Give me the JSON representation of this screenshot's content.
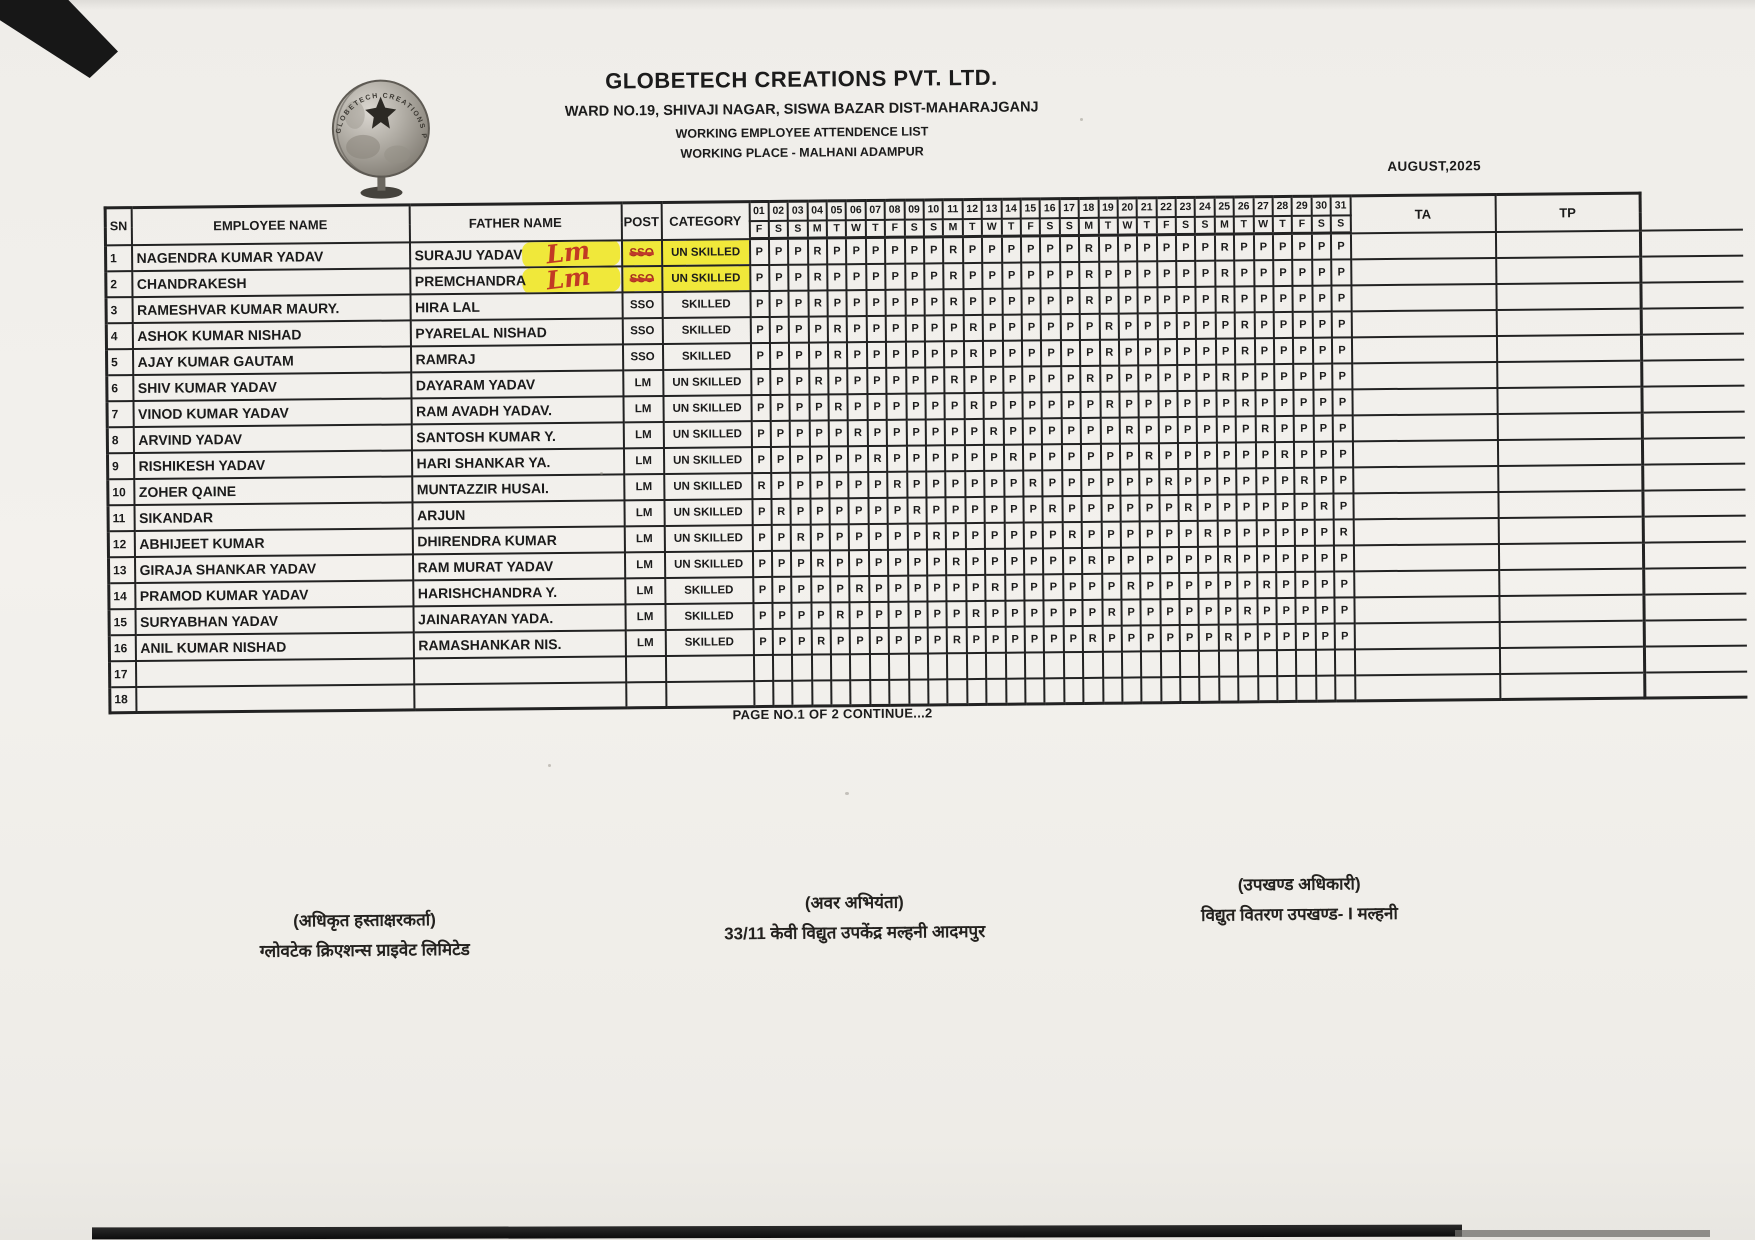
{
  "page": {
    "month_label": "AUGUST,2025",
    "footer_note": "PAGE NO.1 OF 2 CONTINUE...2"
  },
  "header": {
    "company": "GLOBETECH CREATIONS PVT. LTD.",
    "address": "WARD NO.19, SHIVAJI NAGAR, SISWA BAZAR DIST-MAHARAJGANJ",
    "list_title": "WORKING EMPLOYEE ATTENDENCE LIST",
    "working_place": "WORKING PLACE - MALHANI ADAMPUR",
    "logo_arc_text": "GLOBETECH CREATIONS PRIVATE LIMITED"
  },
  "table": {
    "columns": {
      "sn": "SN",
      "employee": "EMPLOYEE NAME",
      "father": "FATHER NAME",
      "post": "POST",
      "category": "CATEGORY",
      "ta": "TA",
      "tp": "TP"
    },
    "day_numbers": [
      "01",
      "02",
      "03",
      "04",
      "05",
      "06",
      "07",
      "08",
      "09",
      "10",
      "11",
      "12",
      "13",
      "14",
      "15",
      "16",
      "17",
      "18",
      "19",
      "20",
      "21",
      "22",
      "23",
      "24",
      "25",
      "26",
      "27",
      "28",
      "29",
      "30",
      "31"
    ],
    "day_letters": [
      "F",
      "S",
      "S",
      "M",
      "T",
      "W",
      "T",
      "F",
      "S",
      "S",
      "M",
      "T",
      "W",
      "T",
      "F",
      "S",
      "S",
      "M",
      "T",
      "W",
      "T",
      "F",
      "S",
      "S",
      "M",
      "T",
      "W",
      "T",
      "F",
      "S",
      "S"
    ],
    "rows": [
      {
        "sn": "1",
        "employee": "NAGENDRA KUMAR YADAV",
        "father": "SURAJU YADAV",
        "handwritten": "Lm",
        "highlight": true,
        "post": "SSO",
        "post_struck": true,
        "category": "UN SKILLED",
        "attendance": "PPPRPPPPPPRPPPPPPRPPPPPPRPPPPPP",
        "ta": "",
        "tp": ""
      },
      {
        "sn": "2",
        "employee": "CHANDRAKESH",
        "father": "PREMCHANDRA",
        "handwritten": "Lm",
        "highlight": true,
        "post": "SSO",
        "post_struck": true,
        "category": "UN SKILLED",
        "attendance": "PPPRPPPPPPRPPPPPPRPPPPPPRPPPPPP",
        "ta": "",
        "tp": ""
      },
      {
        "sn": "3",
        "employee": "RAMESHVAR KUMAR MAURY.",
        "father": "HIRA LAL",
        "handwritten": "",
        "highlight": false,
        "post": "SSO",
        "post_struck": false,
        "category": "SKILLED",
        "attendance": "PPPRPPPPPPRPPPPPPRPPPPPPRPPPPPP",
        "ta": "",
        "tp": ""
      },
      {
        "sn": "4",
        "employee": "ASHOK KUMAR NISHAD",
        "father": "PYARELAL NISHAD",
        "handwritten": "",
        "highlight": false,
        "post": "SSO",
        "post_struck": false,
        "category": "SKILLED",
        "attendance": "PPPPRPPPPPPRPPPPPPRPPPPPPRPPPPP",
        "ta": "",
        "tp": ""
      },
      {
        "sn": "5",
        "employee": "AJAY KUMAR GAUTAM",
        "father": "RAMRAJ",
        "handwritten": "",
        "highlight": false,
        "post": "SSO",
        "post_struck": false,
        "category": "SKILLED",
        "attendance": "PPPPRPPPPPPRPPPPPPRPPPPPPRPPPPP",
        "ta": "",
        "tp": ""
      },
      {
        "sn": "6",
        "employee": "SHIV KUMAR YADAV",
        "father": "DAYARAM YADAV",
        "handwritten": "",
        "highlight": false,
        "post": "LM",
        "post_struck": false,
        "category": "UN SKILLED",
        "attendance": "PPPRPPPPPPRPPPPPPRPPPPPPRPPPPPP",
        "ta": "",
        "tp": ""
      },
      {
        "sn": "7",
        "employee": "VINOD KUMAR YADAV",
        "father": "RAM AVADH YADAV.",
        "handwritten": "",
        "highlight": false,
        "post": "LM",
        "post_struck": false,
        "category": "UN SKILLED",
        "attendance": "PPPPRPPPPPPRPPPPPPRPPPPPPRPPPPP",
        "ta": "",
        "tp": ""
      },
      {
        "sn": "8",
        "employee": "ARVIND YADAV",
        "father": "SANTOSH KUMAR Y.",
        "handwritten": "",
        "highlight": false,
        "post": "LM",
        "post_struck": false,
        "category": "UN SKILLED",
        "attendance": "PPPPPRPPPPPPRPPPPPPRPPPPPPRPPPP",
        "ta": "",
        "tp": ""
      },
      {
        "sn": "9",
        "employee": "RISHIKESH YADAV",
        "father": "HARI SHANKAR YA.",
        "handwritten": "",
        "highlight": false,
        "post": "LM",
        "post_struck": false,
        "category": "UN SKILLED",
        "attendance": "PPPPPPRPPPPPPRPPPPPPRPPPPPPRPPP",
        "ta": "",
        "tp": ""
      },
      {
        "sn": "10",
        "employee": "ZOHER QAINE",
        "father": "MUNTAZZIR HUSAI.",
        "handwritten": "",
        "highlight": false,
        "post": "LM",
        "post_struck": false,
        "category": "UN SKILLED",
        "attendance": "RPPPPPPRPPPPPPRPPPPPPRPPPPPPRPP",
        "ta": "",
        "tp": ""
      },
      {
        "sn": "11",
        "employee": "SIKANDAR",
        "father": "ARJUN",
        "handwritten": "",
        "highlight": false,
        "post": "LM",
        "post_struck": false,
        "category": "UN SKILLED",
        "attendance": "PRPPPPPPRPPPPPPRPPPPPPRPPPPPPRP",
        "ta": "",
        "tp": ""
      },
      {
        "sn": "12",
        "employee": "ABHIJEET KUMAR",
        "father": "DHIRENDRA KUMAR",
        "handwritten": "",
        "highlight": false,
        "post": "LM",
        "post_struck": false,
        "category": "UN SKILLED",
        "attendance": "PPRPPPPPPRPPPPPPRPPPPPPRPPPPPPR",
        "ta": "",
        "tp": ""
      },
      {
        "sn": "13",
        "employee": "GIRAJA SHANKAR YADAV",
        "father": "RAM MURAT YADAV",
        "handwritten": "",
        "highlight": false,
        "post": "LM",
        "post_struck": false,
        "category": "UN SKILLED",
        "attendance": "PPPRPPPPPPRPPPPPPRPPPPPPRPPPPPP",
        "ta": "",
        "tp": ""
      },
      {
        "sn": "14",
        "employee": "PRAMOD KUMAR YADAV",
        "father": "HARISHCHANDRA Y.",
        "handwritten": "",
        "highlight": false,
        "post": "LM",
        "post_struck": false,
        "category": "SKILLED",
        "attendance": "PPPPPRPPPPPPRPPPPPPRPPPPPPRPPPP",
        "ta": "",
        "tp": ""
      },
      {
        "sn": "15",
        "employee": "SURYABHAN YADAV",
        "father": "JAINARAYAN YADA.",
        "handwritten": "",
        "highlight": false,
        "post": "LM",
        "post_struck": false,
        "category": "SKILLED",
        "attendance": "PPPPRPPPPPPRPPPPPPRPPPPPPRPPPPP",
        "ta": "",
        "tp": ""
      },
      {
        "sn": "16",
        "employee": "ANIL KUMAR NISHAD",
        "father": "RAMASHANKAR NIS.",
        "handwritten": "",
        "highlight": false,
        "post": "LM",
        "post_struck": false,
        "category": "SKILLED",
        "attendance": "PPPRPPPPPPRPPPPPPRPPPPPPRPPPPPP",
        "ta": "",
        "tp": ""
      },
      {
        "sn": "17",
        "employee": "",
        "father": "",
        "handwritten": "",
        "highlight": false,
        "post": "",
        "post_struck": false,
        "category": "",
        "attendance": "",
        "ta": "",
        "tp": ""
      },
      {
        "sn": "18",
        "employee": "",
        "father": "",
        "handwritten": "",
        "highlight": false,
        "post": "",
        "post_struck": false,
        "category": "",
        "attendance": "",
        "ta": "",
        "tp": ""
      }
    ]
  },
  "signatures": [
    {
      "line1": "(अधिकृत हस्ताक्षरकर्ता)",
      "line2": "ग्लोवटेक क्रिएशन्स प्राइवेट लिमिटेड"
    },
    {
      "line1": "(अवर अभियंता)",
      "line2": "33/11 केवी विद्युत उपकेंद्र मल्हनी आदमपुर"
    },
    {
      "line1": "(उपखण्ड अधिकारी)",
      "line2": "विद्युत वितरण उपखण्ड- I मल्हनी"
    }
  ],
  "colors": {
    "highlighter_yellow": "#f0e83a",
    "red_ink": "#c23a24",
    "paper": "#f3f1ed",
    "table_line": "#222222"
  }
}
